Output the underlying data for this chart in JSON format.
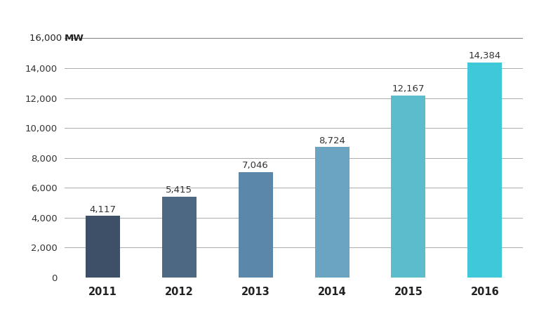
{
  "categories": [
    "2011",
    "2012",
    "2013",
    "2014",
    "2015",
    "2016"
  ],
  "values": [
    4117,
    5415,
    7046,
    8724,
    12167,
    14384
  ],
  "bar_colors": [
    "#3d5068",
    "#4d6882",
    "#5b87aa",
    "#6ba3c2",
    "#5bbccc",
    "#3ec8d8"
  ],
  "ylim": [
    0,
    16000
  ],
  "yticks": [
    0,
    2000,
    4000,
    6000,
    8000,
    10000,
    12000,
    14000,
    16000
  ],
  "ytick_labels": [
    "0",
    "2,000",
    "4,000",
    "6,000",
    "8,000",
    "10,000",
    "12,000",
    "14,000",
    ""
  ],
  "value_labels": [
    "4,117",
    "5,415",
    "7,046",
    "8,724",
    "12,167",
    "14,384"
  ],
  "background_color": "#ffffff",
  "grid_color": "#aaaaaa",
  "bar_width": 0.45
}
